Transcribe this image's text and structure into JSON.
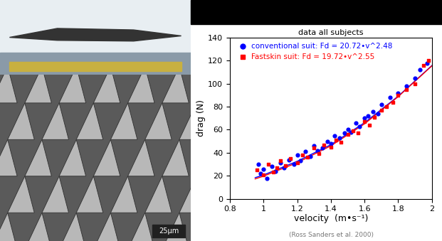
{
  "chart_data": {
    "type": "scatter",
    "title": "data all subjects",
    "x_label": "velocity  (m•s⁻¹)",
    "y_label": "drag (N)",
    "caption": "(Ross Sanders et al. 2000)",
    "xlim": [
      0.8,
      2
    ],
    "xticks": [
      0.8,
      1,
      1.2,
      1.4,
      1.6,
      1.8,
      2
    ],
    "ylim": [
      0,
      140
    ],
    "yticks": [
      0,
      20,
      40,
      60,
      80,
      100,
      120,
      140
    ],
    "grid": false,
    "legend": "upper left",
    "series": [
      {
        "name": "conventional suit: Fd = 20.72•v^2.48",
        "color": "#0000ff",
        "marker": "circle",
        "x": [
          0.97,
          0.98,
          1.0,
          1.02,
          1.05,
          1.07,
          1.1,
          1.12,
          1.15,
          1.18,
          1.2,
          1.22,
          1.25,
          1.28,
          1.3,
          1.32,
          1.35,
          1.38,
          1.4,
          1.42,
          1.45,
          1.48,
          1.5,
          1.52,
          1.55,
          1.57,
          1.6,
          1.62,
          1.65,
          1.68,
          1.7,
          1.75,
          1.8,
          1.85,
          1.9,
          1.93,
          1.97
        ],
        "values": [
          30,
          22,
          26,
          18,
          28,
          24,
          31,
          27,
          34,
          30,
          38,
          33,
          41,
          37,
          46,
          42,
          44,
          50,
          48,
          55,
          53,
          57,
          60,
          58,
          66,
          63,
          70,
          72,
          76,
          74,
          82,
          88,
          92,
          98,
          105,
          112,
          118
        ],
        "fit": {
          "x": [
            0.95,
            1.0,
            1.2,
            1.4,
            1.6,
            1.8,
            2.0
          ],
          "values": [
            18.4,
            20.7,
            32.6,
            47.0,
            66.1,
            89.1,
            115.7
          ]
        }
      },
      {
        "name": "Fastskin suit: Fd = 19.72•v^2.55",
        "color": "#ff0000",
        "marker": "square",
        "x": [
          0.96,
          1.0,
          1.03,
          1.06,
          1.08,
          1.1,
          1.13,
          1.16,
          1.2,
          1.23,
          1.26,
          1.3,
          1.33,
          1.36,
          1.4,
          1.43,
          1.46,
          1.5,
          1.53,
          1.56,
          1.6,
          1.63,
          1.66,
          1.7,
          1.73,
          1.77,
          1.8,
          1.85,
          1.9,
          1.95,
          1.98
        ],
        "values": [
          25,
          21,
          30,
          23,
          27,
          33,
          29,
          35,
          31,
          38,
          36,
          44,
          39,
          47,
          45,
          51,
          49,
          56,
          59,
          57,
          67,
          64,
          71,
          77,
          80,
          84,
          90,
          95,
          100,
          116,
          120
        ],
        "fit": {
          "x": [
            0.95,
            1.0,
            1.2,
            1.4,
            1.6,
            1.8,
            2.0
          ],
          "values": [
            17.3,
            19.7,
            31.4,
            46.0,
            65.1,
            88.7,
            115.4
          ]
        }
      }
    ]
  },
  "scale_bar_label": "25μm"
}
